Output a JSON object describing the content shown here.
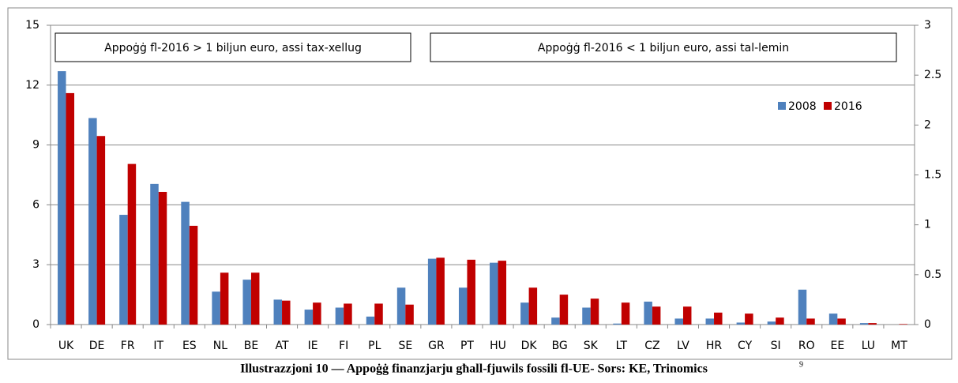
{
  "chart_data": {
    "type": "bar",
    "caption": "Illustrazzjoni 10 — Appoġġ finanzjarju għall-fjuwils fossili fl-UE- Sors: KE, Trinomics",
    "footnote": "9",
    "series": [
      {
        "name": "2008",
        "color": "#4f81bd"
      },
      {
        "name": "2016",
        "color": "#c00000"
      }
    ],
    "ylim": [
      0,
      15
    ],
    "yticks": [
      0,
      3,
      6,
      9,
      12,
      15
    ],
    "y2lim": [
      0,
      3
    ],
    "y2ticks": [
      0,
      0.5,
      1,
      1.5,
      2,
      2.5,
      3
    ],
    "grid": true,
    "legend": "upper right",
    "groups": [
      {
        "label": "Appoġġ fl-2016 > 1 biljun euro, assi tax-xellug",
        "axis": "y",
        "categories": [
          "UK",
          "DE",
          "FR",
          "IT",
          "ES"
        ],
        "values": [
          [
            12.7,
            10.35,
            5.5,
            7.05,
            6.15
          ],
          [
            11.6,
            9.45,
            8.05,
            6.65,
            4.95
          ]
        ]
      },
      {
        "label": "Appoġġ fl-2016 < 1 biljun euro, assi tal-lemin",
        "axis": "y2",
        "categories": [
          "NL",
          "BE",
          "AT",
          "IE",
          "FI",
          "PL",
          "SE",
          "GR",
          "PT",
          "HU",
          "DK",
          "BG",
          "SK",
          "LT",
          "CZ",
          "LV",
          "HR",
          "CY",
          "SI",
          "RO",
          "EE",
          "LU",
          "MT"
        ],
        "values": [
          [
            0.33,
            0.45,
            0.25,
            0.15,
            0.17,
            0.08,
            0.37,
            0.66,
            0.37,
            0.62,
            0.22,
            0.07,
            0.17,
            0.01,
            0.23,
            0.06,
            0.06,
            0.02,
            0.03,
            0.35,
            0.11,
            0.015,
            0
          ],
          [
            0.52,
            0.52,
            0.24,
            0.22,
            0.21,
            0.21,
            0.2,
            0.67,
            0.65,
            0.64,
            0.37,
            0.3,
            0.26,
            0.22,
            0.18,
            0.18,
            0.12,
            0.11,
            0.07,
            0.06,
            0.06,
            0.015,
            0.005
          ]
        ]
      }
    ]
  }
}
